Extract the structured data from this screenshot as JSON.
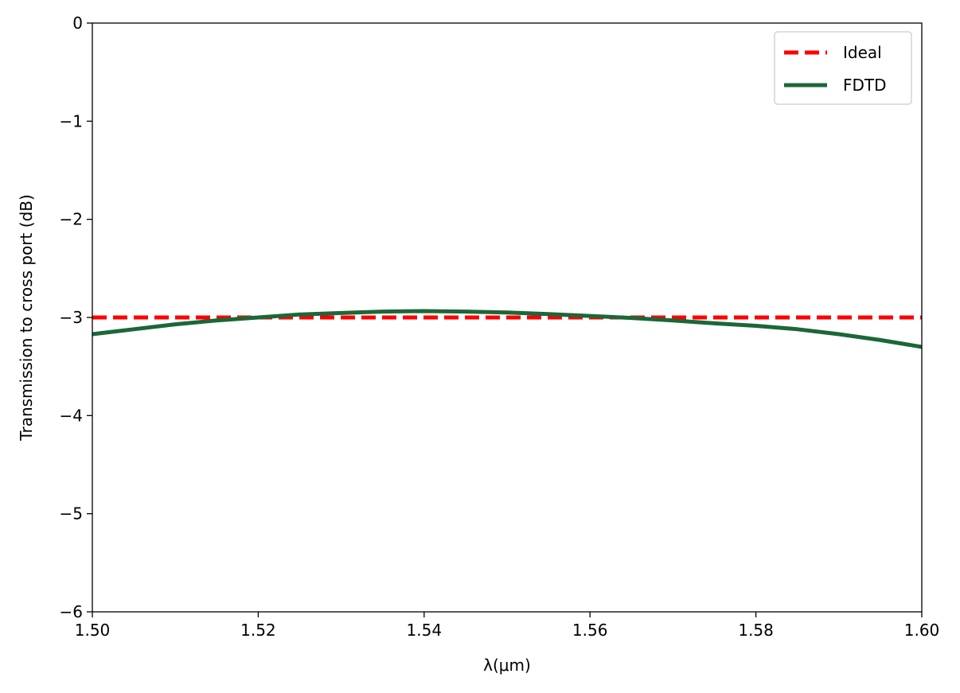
{
  "chart_data": {
    "type": "line",
    "xlabel": "λ(μm)",
    "ylabel": "Transmission to cross port (dB)",
    "xlim": [
      1.5,
      1.6
    ],
    "ylim": [
      -6,
      0
    ],
    "x_ticks": [
      "1.50",
      "1.52",
      "1.54",
      "1.56",
      "1.58",
      "1.60"
    ],
    "y_ticks": [
      "0",
      "−1",
      "−2",
      "−3",
      "−4",
      "−5",
      "−6"
    ],
    "grid": false,
    "legend_position": "top-right",
    "series": [
      {
        "name": "Ideal",
        "style": "dashed",
        "color": "#ff0000",
        "x": [
          1.5,
          1.6
        ],
        "y": [
          -3.0,
          -3.0
        ]
      },
      {
        "name": "FDTD",
        "style": "solid",
        "color": "#1b6738",
        "x": [
          1.5,
          1.505,
          1.51,
          1.515,
          1.52,
          1.525,
          1.53,
          1.535,
          1.54,
          1.545,
          1.55,
          1.555,
          1.56,
          1.565,
          1.57,
          1.575,
          1.58,
          1.585,
          1.59,
          1.595,
          1.6
        ],
        "y": [
          -3.17,
          -3.12,
          -3.07,
          -3.03,
          -3.0,
          -2.97,
          -2.955,
          -2.94,
          -2.935,
          -2.94,
          -2.95,
          -2.965,
          -2.985,
          -3.005,
          -3.03,
          -3.06,
          -3.085,
          -3.12,
          -3.17,
          -3.23,
          -3.3
        ]
      }
    ]
  }
}
